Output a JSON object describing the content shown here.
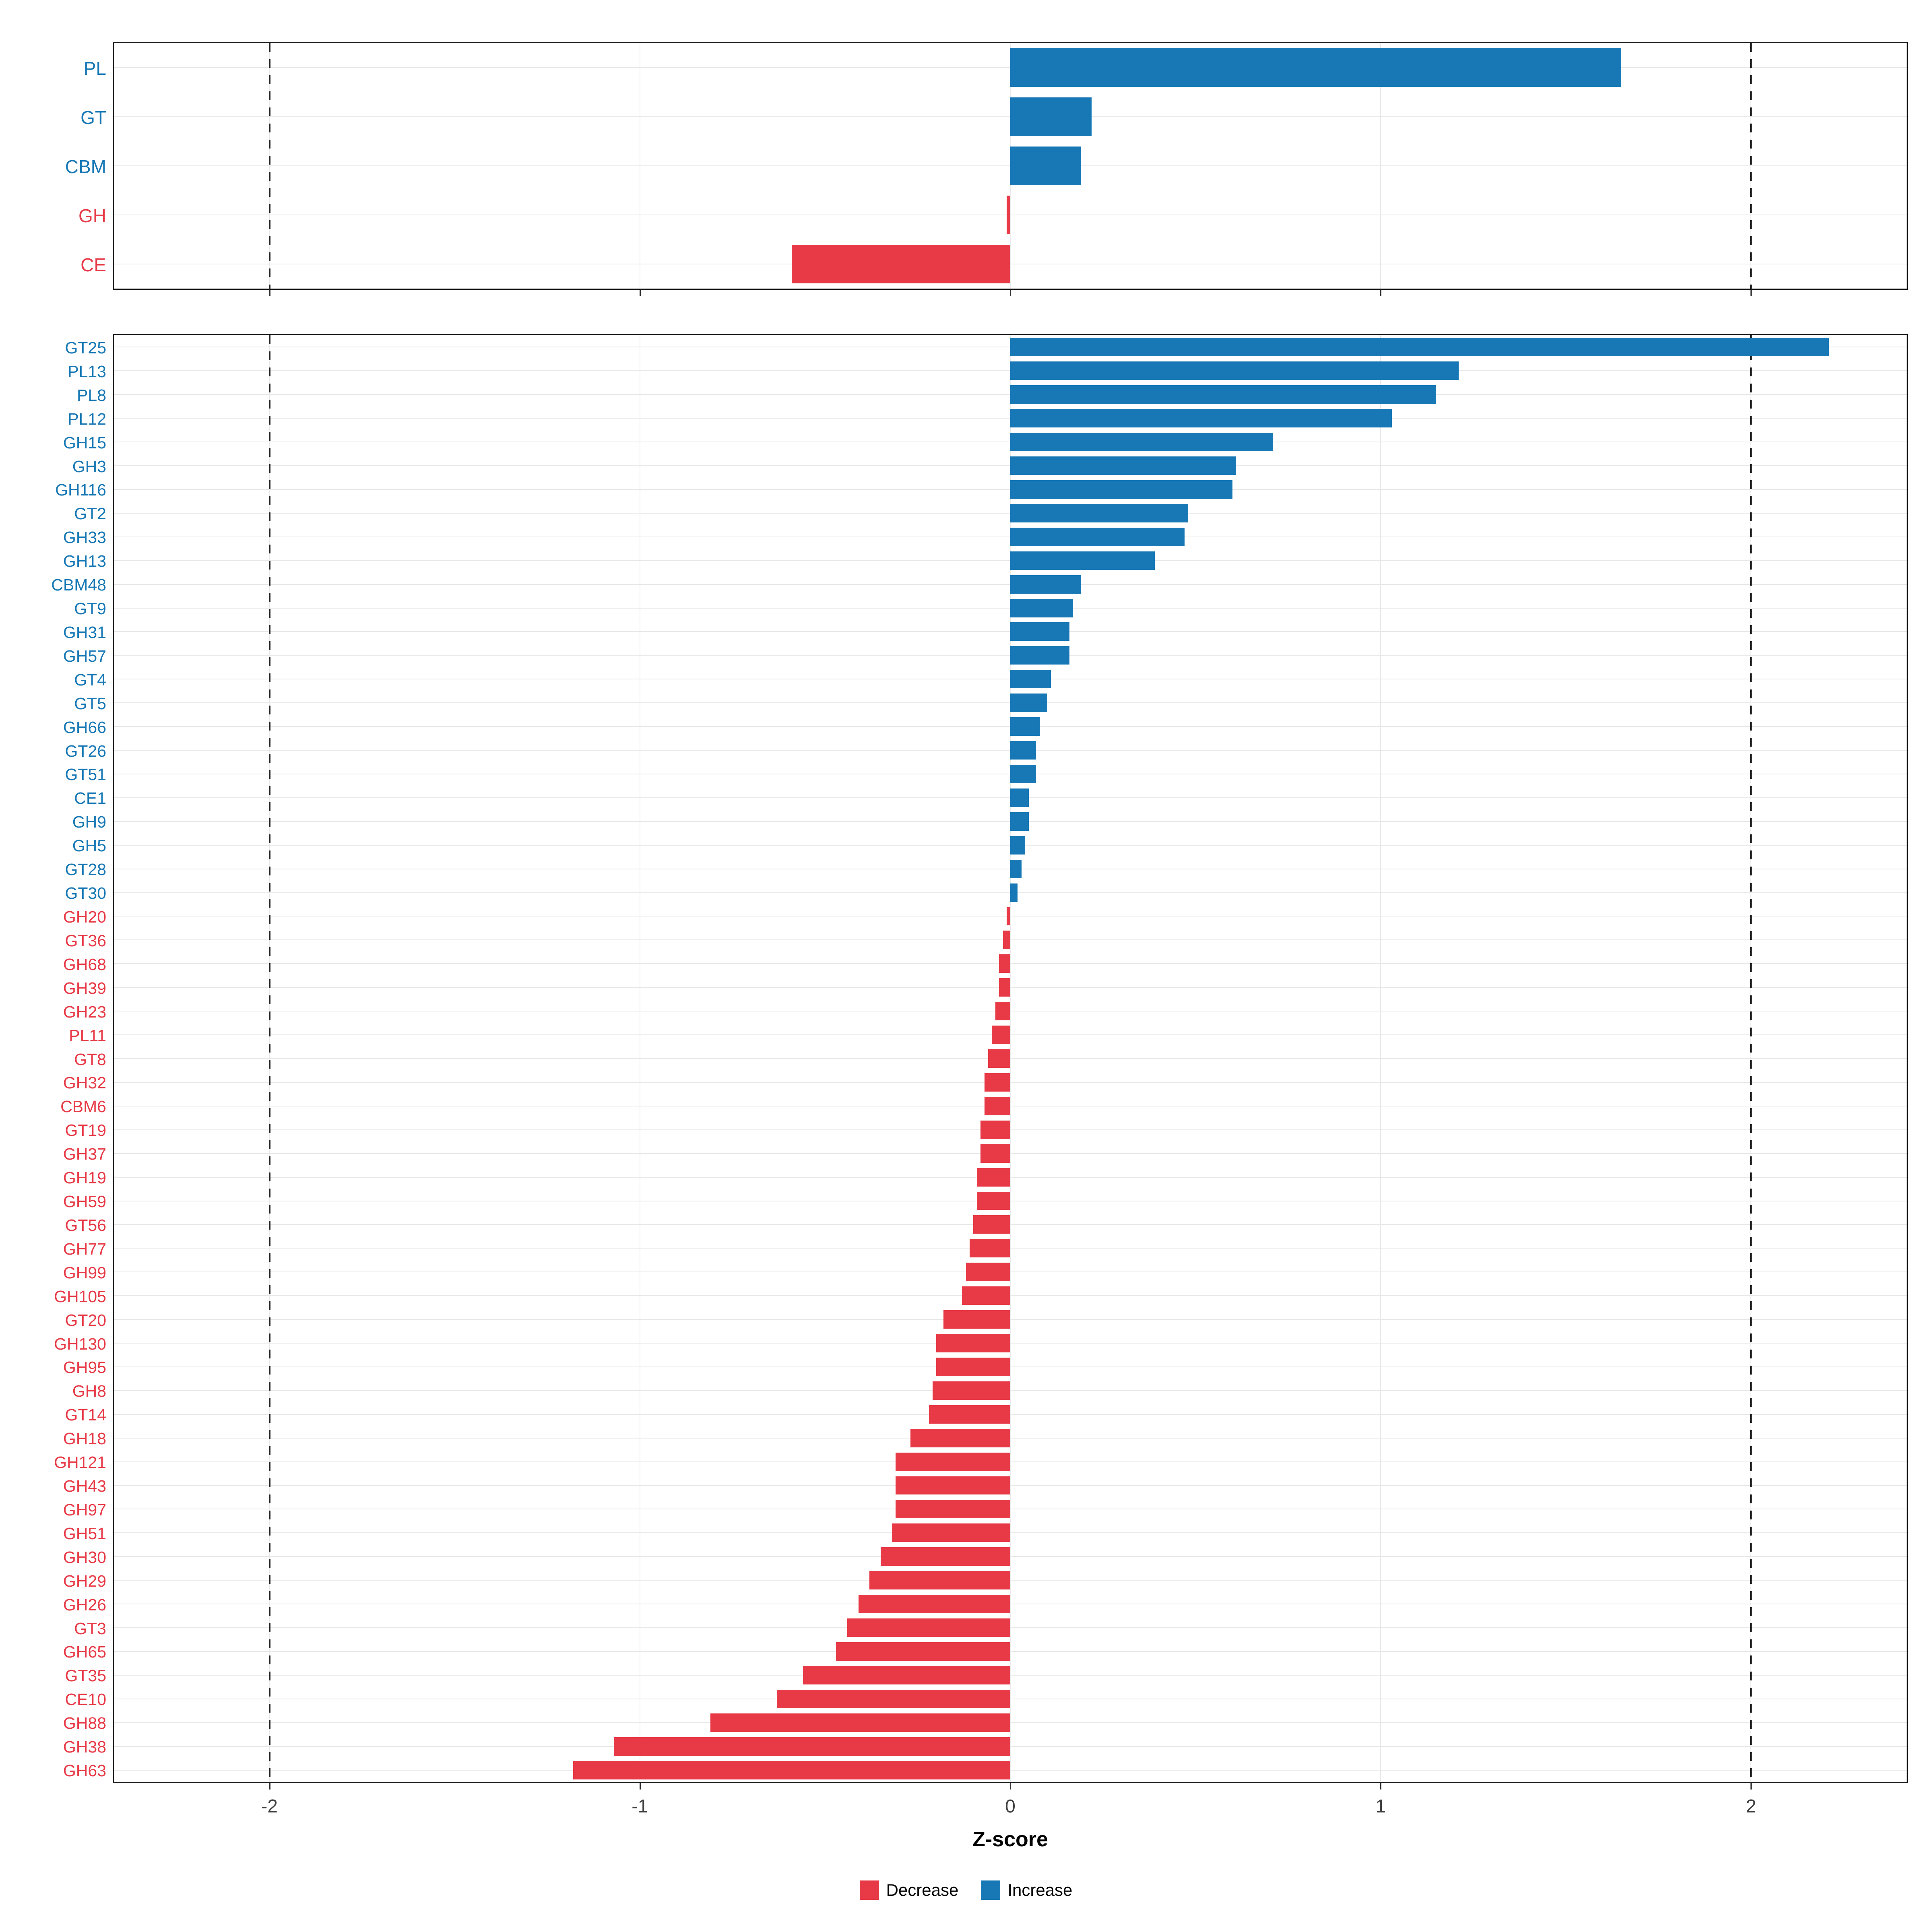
{
  "figure": {
    "background": "#FFFFFF",
    "axis": {
      "title": "Z-score",
      "ticks": [
        -2,
        -1,
        0,
        1,
        2
      ],
      "tick_labels": [
        "-2",
        "-1",
        "0",
        "1",
        "2"
      ],
      "domain": [
        -2.42,
        2.42
      ],
      "dashed_lines": [
        -2,
        2
      ]
    },
    "colors": {
      "increase": "#1778B5",
      "decrease": "#E73946",
      "grid": "#E8E8E8",
      "panel_border": "#1A1A1A",
      "tick": "#333333",
      "tick_text": "#404040"
    },
    "legend": [
      {
        "label": "Decrease",
        "color": "#E73946"
      },
      {
        "label": "Increase",
        "color": "#1778B5"
      }
    ]
  },
  "chart_data": [
    {
      "type": "bar",
      "orientation": "horizontal",
      "panel": "top",
      "title": "",
      "xlabel": "Z-score",
      "ylabel": "",
      "xlim": [
        -2.42,
        2.42
      ],
      "grid": true,
      "categories": [
        "PL",
        "GT",
        "CBM",
        "GH",
        "CE"
      ],
      "values": [
        1.65,
        0.22,
        0.19,
        -0.01,
        -0.59
      ]
    },
    {
      "type": "bar",
      "orientation": "horizontal",
      "panel": "bottom",
      "title": "",
      "xlabel": "Z-score",
      "ylabel": "",
      "xlim": [
        -2.42,
        2.42
      ],
      "grid": true,
      "categories": [
        "GT25",
        "PL13",
        "PL8",
        "PL12",
        "GH15",
        "GH3",
        "GH116",
        "GT2",
        "GH33",
        "GH13",
        "CBM48",
        "GT9",
        "GH31",
        "GH57",
        "GT4",
        "GT5",
        "GH66",
        "GT26",
        "GT51",
        "CE1",
        "GH9",
        "GH5",
        "GT28",
        "GT30",
        "GH20",
        "GT36",
        "GH68",
        "GH39",
        "GH23",
        "PL11",
        "GT8",
        "GH32",
        "CBM6",
        "GT19",
        "GH37",
        "GH19",
        "GH59",
        "GT56",
        "GH77",
        "GH99",
        "GH105",
        "GT20",
        "GH130",
        "GH95",
        "GH8",
        "GT14",
        "GH18",
        "GH121",
        "GH43",
        "GH97",
        "GH51",
        "GH30",
        "GH29",
        "GH26",
        "GT3",
        "GH65",
        "GT35",
        "CE10",
        "GH88",
        "GH38",
        "GH63"
      ],
      "values": [
        2.21,
        1.21,
        1.15,
        1.03,
        0.71,
        0.61,
        0.6,
        0.48,
        0.47,
        0.39,
        0.19,
        0.17,
        0.16,
        0.16,
        0.11,
        0.1,
        0.08,
        0.07,
        0.07,
        0.05,
        0.05,
        0.04,
        0.03,
        0.02,
        -0.01,
        -0.02,
        -0.03,
        -0.03,
        -0.04,
        -0.05,
        -0.06,
        -0.07,
        -0.07,
        -0.08,
        -0.08,
        -0.09,
        -0.09,
        -0.1,
        -0.11,
        -0.12,
        -0.13,
        -0.18,
        -0.2,
        -0.2,
        -0.21,
        -0.22,
        -0.27,
        -0.31,
        -0.31,
        -0.31,
        -0.32,
        -0.35,
        -0.38,
        -0.41,
        -0.44,
        -0.47,
        -0.56,
        -0.63,
        -0.81,
        -1.07,
        -1.18
      ]
    }
  ]
}
